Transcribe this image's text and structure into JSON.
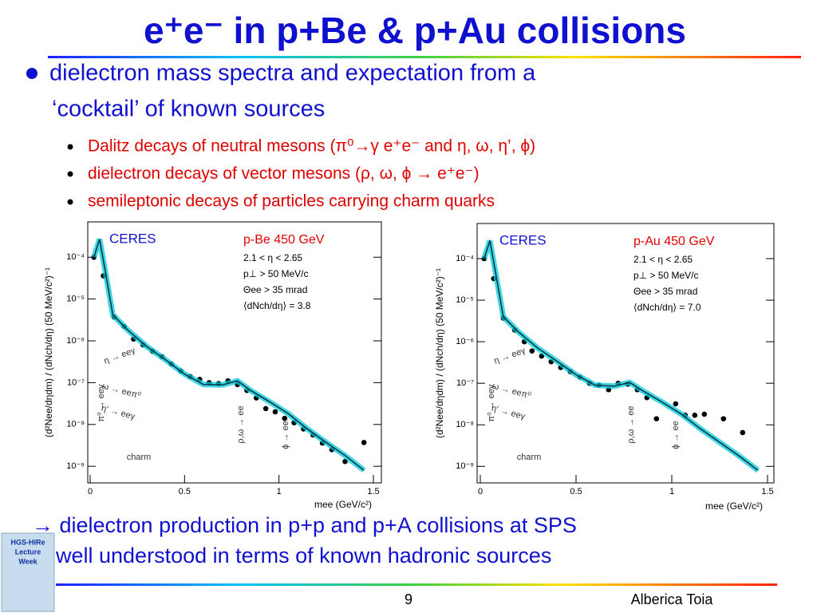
{
  "header": {
    "title": "e⁺e⁻ in p+Be & p+Au collisions"
  },
  "bullets": {
    "main": [
      "dielectron mass spectra and expectation from a",
      "‘cocktail’ of known sources"
    ],
    "sub": [
      "Dalitz decays of neutral mesons (π⁰→γ e⁺e⁻ and η, ω, η’, ϕ)",
      "dielectron decays of vector mesons (ρ, ω, ϕ → e⁺e⁻)",
      "semileptonic decays of particles carrying charm quarks"
    ]
  },
  "chart_data": [
    {
      "type": "scatter",
      "ylog": true,
      "xlabel": "mee (GeV/c²)",
      "ylabel": "(d²Nee/dηdm) / (dNch/dη) (50 MeV/c²)⁻¹",
      "xlim": [
        0,
        1.5
      ],
      "xticks": [
        0,
        0.5,
        1,
        1.5
      ],
      "ylim": [
        4e-10,
        0.0007
      ],
      "yticks": [
        {
          "value": 0.0001,
          "label": "10⁻⁴"
        },
        {
          "value": 1e-05,
          "label": "10⁻⁵"
        },
        {
          "value": 1e-06,
          "label": "10⁻⁶"
        },
        {
          "value": 1e-07,
          "label": "10⁻⁷"
        },
        {
          "value": 1e-08,
          "label": "10⁻⁸"
        },
        {
          "value": 1e-09,
          "label": "10⁻⁹"
        }
      ],
      "annotations": [
        "CERES",
        "p-Be 450 GeV",
        "2.1 < η < 2.65",
        "p⊥ > 50 MeV/c",
        "Θee > 35 mrad",
        "⟨dNch/dη⟩ = 3.8"
      ],
      "components": [
        "η → eeγ",
        "ω → eeπ⁰",
        "η′ → eeγ",
        "π⁰ → eeγ",
        "ρ,ω → ee",
        "ϕ → ee",
        "charm"
      ],
      "series": [
        {
          "style": "points",
          "color": "#000000",
          "x": [
            0.02,
            0.07,
            0.127,
            0.18,
            0.23,
            0.28,
            0.33,
            0.38,
            0.43,
            0.48,
            0.53,
            0.58,
            0.63,
            0.68,
            0.73,
            0.78,
            0.83,
            0.88,
            0.93,
            0.98,
            1.03,
            1.08,
            1.13,
            1.18,
            1.23,
            1.28,
            1.35,
            1.45
          ],
          "values": [
            0.0001,
            3.6e-05,
            3.7e-06,
            2.2e-06,
            1.1e-06,
            8e-07,
            5.6e-07,
            4.2e-07,
            2.8e-07,
            1.9e-07,
            1.4e-07,
            1.2e-07,
            1e-07,
            9.5e-08,
            1.1e-07,
            9e-08,
            6.5e-08,
            4.3e-08,
            2.4e-08,
            2e-08,
            1.4e-08,
            1.1e-08,
            7.8e-09,
            5.6e-09,
            3.6e-09,
            2.5e-09,
            1.3e-09,
            3.7e-09
          ]
        },
        {
          "style": "line",
          "color": "#00c8d8",
          "x": [
            0.02,
            0.05,
            0.08,
            0.12,
            0.2,
            0.3,
            0.4,
            0.5,
            0.6,
            0.7,
            0.78,
            0.85,
            0.95,
            1.05,
            1.15,
            1.25,
            1.35,
            1.45
          ],
          "values": [
            0.0001,
            0.00027,
            4.7e-05,
            4.2e-06,
            1.8e-06,
            7.3e-07,
            3.5e-07,
            1.6e-07,
            9e-08,
            8.8e-08,
            1.1e-07,
            6.5e-08,
            3.5e-08,
            1.8e-08,
            7.8e-09,
            3.7e-09,
            1.8e-09,
            8e-10
          ]
        }
      ]
    },
    {
      "type": "scatter",
      "ylog": true,
      "xlabel": "mee (GeV/c²)",
      "ylabel": "(d²Nee/dηdm) / (dNch/dη) (50 MeV/c²)⁻¹",
      "xlim": [
        0,
        1.5
      ],
      "xticks": [
        0,
        0.5,
        1,
        1.5
      ],
      "ylim": [
        4e-10,
        0.0007
      ],
      "yticks": [
        {
          "value": 0.0001,
          "label": "10⁻⁴"
        },
        {
          "value": 1e-05,
          "label": "10⁻⁵"
        },
        {
          "value": 1e-06,
          "label": "10⁻⁶"
        },
        {
          "value": 1e-07,
          "label": "10⁻⁷"
        },
        {
          "value": 1e-08,
          "label": "10⁻⁸"
        },
        {
          "value": 1e-09,
          "label": "10⁻⁹"
        }
      ],
      "annotations": [
        "CERES",
        "p-Au 450 GeV",
        "2.1 < η < 2.65",
        "p⊥ > 50 MeV/c",
        "Θee > 35 mrad",
        "⟨dNch/dη⟩ = 7.0"
      ],
      "components": [
        "η → eeγ",
        "ω → eeπ⁰",
        "η′ → eeγ",
        "π⁰ → eeγ",
        "ρ,ω → ee",
        "ϕ → ee",
        "charm"
      ],
      "series": [
        {
          "style": "points",
          "color": "#000000",
          "x": [
            0.02,
            0.07,
            0.12,
            0.18,
            0.23,
            0.27,
            0.32,
            0.37,
            0.42,
            0.47,
            0.52,
            0.57,
            0.62,
            0.67,
            0.72,
            0.77,
            0.82,
            0.87,
            0.92,
            1.02,
            1.07,
            1.12,
            1.17,
            1.27,
            1.37
          ],
          "values": [
            0.0001,
            3.3e-05,
            3.7e-06,
            1.9e-06,
            1e-06,
            6e-07,
            4.5e-07,
            3.3e-07,
            2.4e-07,
            1.9e-07,
            1.4e-07,
            1e-07,
            9e-08,
            7e-08,
            1e-07,
            9.5e-08,
            7e-08,
            4.5e-08,
            1.4e-08,
            3.2e-08,
            1.7e-08,
            1.7e-08,
            1.8e-08,
            1.4e-08,
            6.5e-09
          ]
        },
        {
          "style": "line",
          "color": "#00c8d8",
          "x": [
            0.02,
            0.05,
            0.08,
            0.12,
            0.2,
            0.3,
            0.4,
            0.5,
            0.6,
            0.7,
            0.78,
            0.85,
            0.95,
            1.05,
            1.15,
            1.25,
            1.35,
            1.45
          ],
          "values": [
            0.0001,
            0.00027,
            4.5e-05,
            4e-06,
            1.7e-06,
            7e-07,
            3.4e-07,
            1.6e-07,
            9e-08,
            8.5e-08,
            1.05e-07,
            6.5e-08,
            3.5e-08,
            1.8e-08,
            8e-09,
            3.8e-09,
            1.8e-09,
            8e-10
          ]
        }
      ]
    }
  ],
  "conclusion": [
    "→ dielectron production in p+p and p+A collisions at SPS",
    "well understood in terms of known hadronic sources"
  ],
  "footer": {
    "logo": [
      "HGS-HIRe",
      "Lecture",
      "Week"
    ],
    "page": "9",
    "author": "Alberica Toia"
  }
}
